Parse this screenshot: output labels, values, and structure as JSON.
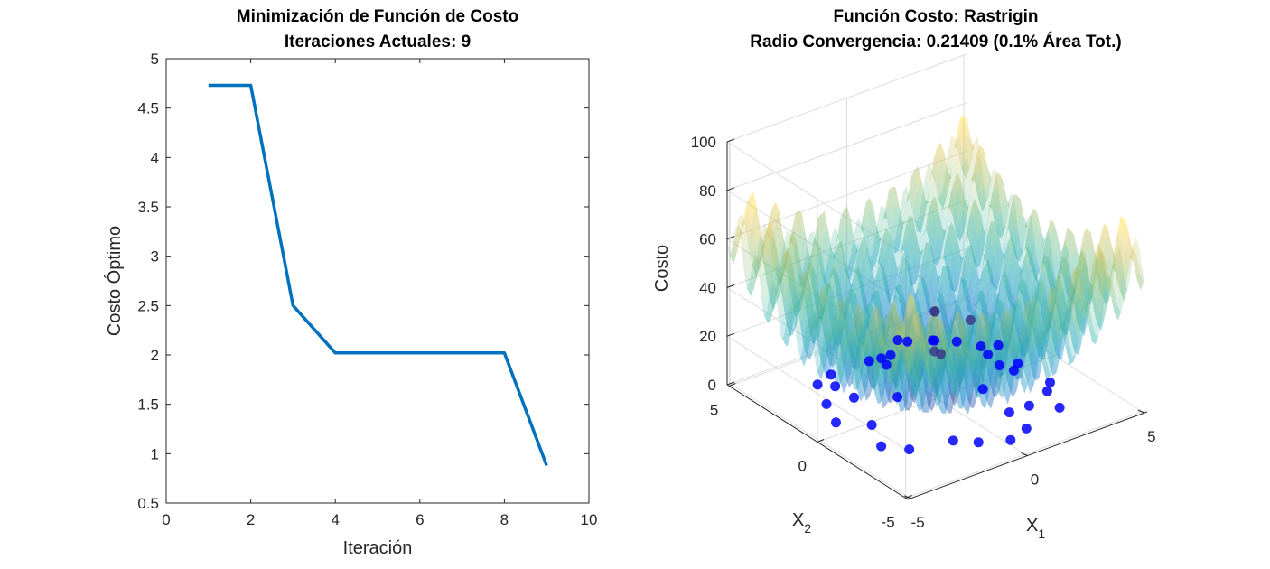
{
  "chart_data": [
    {
      "type": "line",
      "title": "Minimización de Función de Costo",
      "subtitle": "Iteraciones Actuales: 9",
      "xlabel": "Iteración",
      "ylabel": "Costo Óptimo",
      "xlim": [
        0,
        10
      ],
      "ylim": [
        0.5,
        5
      ],
      "xticks": [
        0,
        2,
        4,
        6,
        8,
        10
      ],
      "yticks": [
        0.5,
        1,
        1.5,
        2,
        2.5,
        3,
        3.5,
        4,
        4.5,
        5
      ],
      "grid": false,
      "series": [
        {
          "color": "#0072BD",
          "x": [
            1,
            2,
            3,
            4,
            5,
            6,
            7,
            8,
            9
          ],
          "y": [
            4.73,
            4.73,
            2.5,
            2.02,
            2.02,
            2.02,
            2.02,
            2.02,
            0.88
          ]
        }
      ]
    },
    {
      "type": "surface3d",
      "title": "Función Costo: Rastrigin",
      "subtitle": "Radio Convergencia: 0.21409 (0.1% Área Tot.)",
      "xlabel": "X",
      "xlabel_sub": "1",
      "ylabel": "X",
      "ylabel_sub": "2",
      "zlabel": "Costo",
      "xlim": [
        -5.12,
        5.12
      ],
      "ylim": [
        -5.12,
        5.12
      ],
      "zlim": [
        0,
        100
      ],
      "xticks": [
        -5,
        0,
        5
      ],
      "yticks": [
        -5,
        0,
        5
      ],
      "zticks": [
        0,
        20,
        40,
        60,
        80,
        100
      ],
      "grid": true,
      "colormap": "parula",
      "surface_alpha": 0.45,
      "points_color": "#0000FF",
      "points": [
        [
          -1.4,
          -1.7,
          32.1
        ],
        [
          0.2,
          0.4,
          33.3
        ],
        [
          1.2,
          -0.3,
          29.4
        ],
        [
          -0.6,
          -1.0,
          25.0
        ],
        [
          0.8,
          1.2,
          27.3
        ],
        [
          -1.8,
          0.5,
          17.8
        ],
        [
          1.6,
          -1.4,
          14.4
        ],
        [
          -0.4,
          1.7,
          17.5
        ],
        [
          2.1,
          0.3,
          12.6
        ],
        [
          -2.3,
          -0.8,
          12.3
        ],
        [
          0.3,
          -2.2,
          12.9
        ],
        [
          1.4,
          2.0,
          9.6
        ],
        [
          -1.1,
          2.4,
          8.1
        ],
        [
          2.6,
          -0.9,
          6.4
        ],
        [
          -2.8,
          1.0,
          5.5
        ],
        [
          0.9,
          -2.9,
          4.4
        ],
        [
          -0.2,
          2.9,
          3.8
        ],
        [
          3.0,
          1.1,
          2.4
        ],
        [
          -3.1,
          -0.4,
          1.8
        ],
        [
          1.9,
          -2.7,
          2.7
        ],
        [
          -1.5,
          -2.9,
          1.2
        ],
        [
          3.2,
          -2.0,
          0.9
        ],
        [
          -2.4,
          2.6,
          1.4
        ],
        [
          0.5,
          3.3,
          0.8
        ],
        [
          -3.3,
          1.9,
          0.5
        ],
        [
          2.8,
          2.6,
          1.5
        ],
        [
          -0.8,
          -3.4,
          0.4
        ],
        [
          3.6,
          0.2,
          0.7
        ],
        [
          -3.0,
          -2.4,
          0.6
        ],
        [
          1.1,
          -3.6,
          0.3
        ],
        [
          -3.8,
          0.7,
          0.2
        ],
        [
          2.3,
          3.3,
          0.5
        ],
        [
          -1.9,
          3.5,
          0.3
        ],
        [
          3.7,
          -1.5,
          0.4
        ],
        [
          0.2,
          -3.9,
          0.1
        ],
        [
          -3.6,
          -1.6,
          0.3
        ],
        [
          2.9,
          -3.1,
          0.2
        ],
        [
          -2.7,
          3.2,
          0.4
        ],
        [
          1.6,
          3.8,
          0.2
        ],
        [
          3.9,
          1.7,
          0.3
        ]
      ]
    }
  ]
}
